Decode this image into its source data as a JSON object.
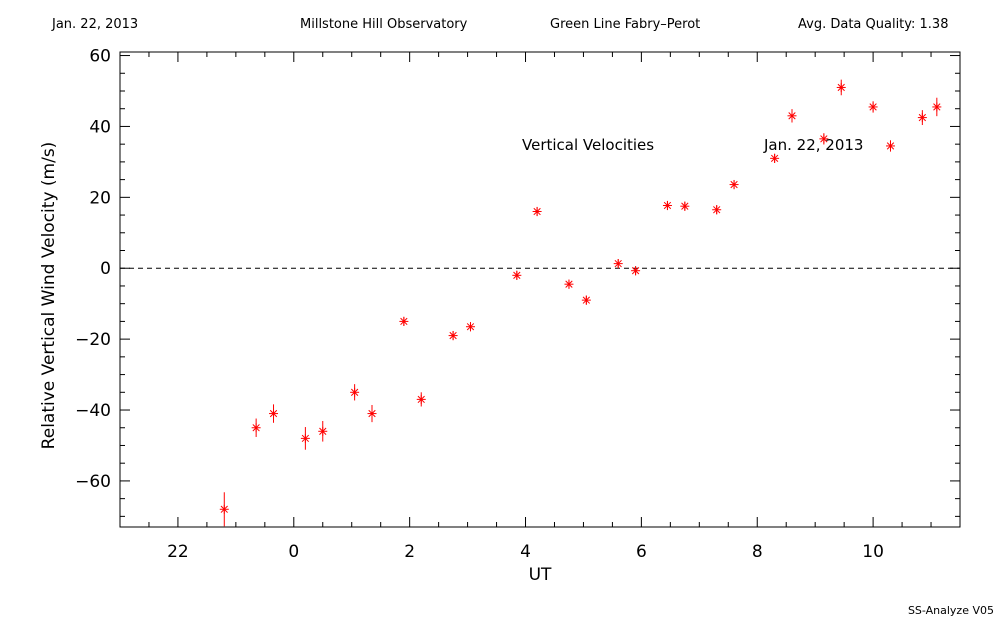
{
  "header": {
    "date": "Jan. 22, 2013",
    "observatory": "Millstone Hill Observatory",
    "instrument": "Green Line Fabry–Perot",
    "quality": "Avg. Data Quality: 1.38"
  },
  "footer": {
    "version": "SS-Analyze V05"
  },
  "chart_data": {
    "type": "scatter",
    "title": "",
    "xlabel": "UT",
    "ylabel": "Relative Vertical Wind Velocity (m/s)",
    "xlim": [
      21.0,
      35.5
    ],
    "ylim": [
      -73,
      61
    ],
    "x_ticks": [
      22,
      24,
      26,
      28,
      30,
      32,
      34
    ],
    "x_tick_labels": [
      "22",
      "0",
      "2",
      "4",
      "6",
      "8",
      "10"
    ],
    "y_ticks": [
      -60,
      -40,
      -20,
      0,
      20,
      40,
      60
    ],
    "y_tick_labels": [
      "−60",
      "−40",
      "−20",
      "0",
      "20",
      "40",
      "60"
    ],
    "zero_line": true,
    "annotations": [
      "Vertical Velocities",
      "Jan. 22, 2013"
    ],
    "marker_color": "#ff0000",
    "series": [
      {
        "x": [
          22.8,
          23.35,
          23.65,
          24.2,
          24.5,
          25.05,
          25.35,
          25.9,
          26.2,
          26.75,
          27.05,
          27.85,
          28.2,
          28.75,
          29.05,
          29.6,
          29.9,
          30.45,
          30.75,
          31.3,
          31.6,
          32.3,
          32.6,
          33.15,
          33.45,
          34.0,
          34.3,
          34.85,
          35.1
        ],
        "y": [
          -68,
          -45,
          -41,
          -48,
          -46,
          -35,
          -41,
          -15,
          -37,
          -19,
          -16.5,
          -2,
          16,
          -4.5,
          -9,
          1.3,
          -0.7,
          17.7,
          17.5,
          16.5,
          23.6,
          31,
          43,
          36.5,
          51,
          45.5,
          34.5,
          42.5,
          45.5
        ],
        "errors": [
          4.8,
          2.6,
          2.6,
          3.2,
          2.9,
          2.3,
          2.4,
          1.3,
          2.0,
          1.3,
          1.3,
          1.3,
          1.3,
          1.3,
          1.3,
          1.3,
          1.3,
          1.3,
          1.3,
          1.3,
          1.3,
          1.3,
          1.9,
          1.6,
          2.2,
          1.6,
          1.6,
          2.1,
          2.6
        ]
      }
    ]
  }
}
